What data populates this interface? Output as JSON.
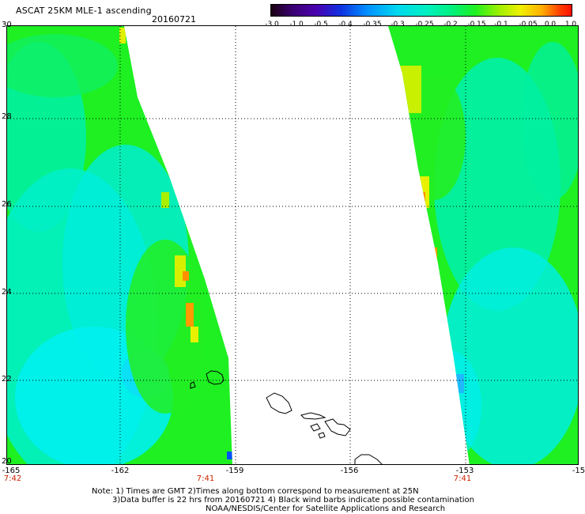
{
  "title": "ASCAT 25KM MLE-1 ascending",
  "date": "20160721",
  "colorbar": {
    "ticks": [
      "-3.0",
      "-1.0",
      "-0.5",
      "-0.4",
      "-0.35",
      "-0.3",
      "-0.25",
      "-0.2",
      "-0.15",
      "-0.1",
      "-0.05",
      "0.0",
      "1.0"
    ]
  },
  "axes": {
    "lat_labels": [
      "30",
      "28",
      "26",
      "24",
      "22",
      "20"
    ],
    "lon_labels": [
      "-165",
      "-162",
      "-159",
      "-156",
      "-153",
      "-15"
    ],
    "time_labels": [
      "7:42",
      "7:41",
      "7:41"
    ]
  },
  "notes": {
    "line1": "Note: 1) Times are GMT 2)Times along bottom correspond to measurement at 25N",
    "line2": "3)Data buffer is 22 hrs from 20160721 4) Black wind barbs indicate possible contamination",
    "line3": "NOAA/NESDIS/Center for Satellite Applications and Research"
  },
  "colors": {
    "swath_green": "#22ee22",
    "swath_cyan": "#00f0f0",
    "swath_aqua": "#00f0b0",
    "anomaly_yellow": "#e8f000",
    "anomaly_orange": "#ff8000",
    "coastline": "#000000"
  }
}
